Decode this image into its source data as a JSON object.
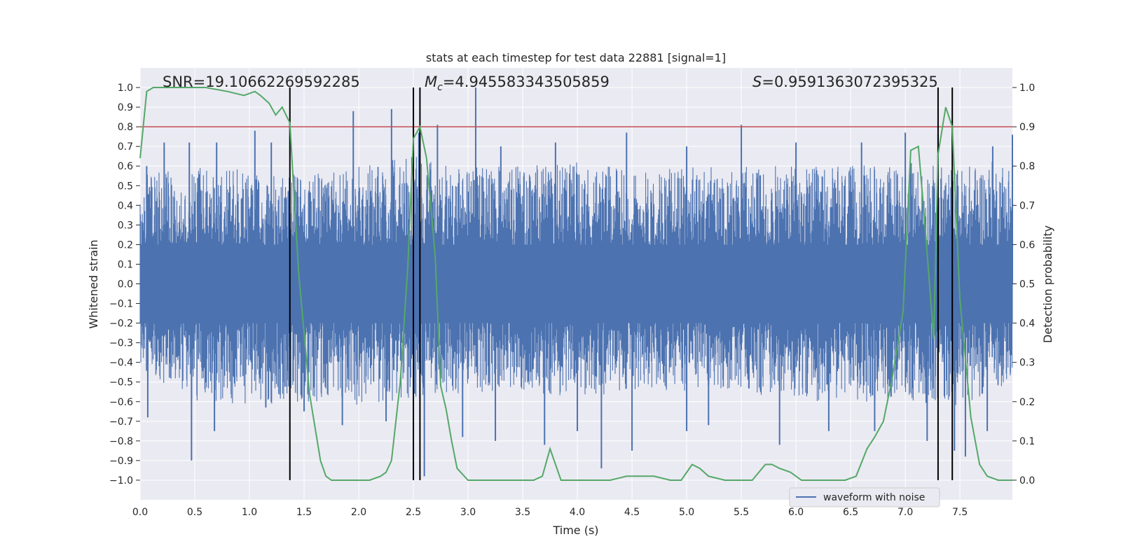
{
  "chart_data": {
    "type": "line",
    "title": "stats at each timestep for test data 22881 [signal=1]",
    "xlabel": "Time (s)",
    "ylabel_left": "Whitened strain",
    "ylabel_right": "Detection probability",
    "xlim": [
      0.0,
      7.98
    ],
    "ylim_left": [
      -1.1,
      1.1
    ],
    "ylim_right": [
      -0.05,
      1.05
    ],
    "grid": true,
    "background": "#eaeaf2",
    "x_ticks": [
      "0.0",
      "0.5",
      "1.0",
      "1.5",
      "2.0",
      "2.5",
      "3.0",
      "3.5",
      "4.0",
      "4.5",
      "5.0",
      "5.5",
      "6.0",
      "6.5",
      "7.0",
      "7.5"
    ],
    "y_ticks_left": [
      "1.0",
      "0.9",
      "0.8",
      "0.7",
      "0.6",
      "0.5",
      "0.4",
      "0.3",
      "0.2",
      "0.1",
      "0.0",
      "−0.1",
      "−0.2",
      "−0.3",
      "−0.4",
      "−0.5",
      "−0.6",
      "−0.7",
      "−0.8",
      "−0.9",
      "−1.0"
    ],
    "y_ticks_right": [
      "1.0",
      "0.9",
      "0.8",
      "0.7",
      "0.6",
      "0.5",
      "0.4",
      "0.3",
      "0.2",
      "0.1",
      "0.0"
    ],
    "annotations": {
      "snr": "SNR=19.10662269592285",
      "mc_symbol": "M",
      "mc_sub": "c",
      "mc_value": "=4.945583343505859",
      "s_symbol": "S",
      "s_value": "=0.9591363072395325"
    },
    "threshold": {
      "value": 0.8,
      "color": "#c44e52"
    },
    "vertical_lines": [
      1.37,
      2.5,
      2.56,
      7.3,
      7.43
    ],
    "vertical_line_range": [
      -1.0,
      1.0
    ],
    "series": [
      {
        "name": "waveform with noise",
        "color": "#4c72b0",
        "axis": "left",
        "envelope": {
          "x": [
            0.0,
            0.5,
            1.0,
            1.5,
            2.0,
            2.5,
            3.0,
            3.5,
            4.0,
            4.5,
            5.0,
            5.5,
            6.0,
            6.5,
            7.0,
            7.5,
            7.98
          ],
          "upper": [
            0.55,
            0.6,
            0.58,
            0.55,
            0.6,
            0.65,
            0.6,
            0.6,
            0.62,
            0.58,
            0.6,
            0.6,
            0.6,
            0.6,
            0.62,
            0.6,
            0.65
          ],
          "lower": [
            -0.45,
            -0.6,
            -0.62,
            -0.6,
            -0.62,
            -0.6,
            -0.55,
            -0.55,
            -0.58,
            -0.55,
            -0.55,
            -0.55,
            -0.6,
            -0.6,
            -0.6,
            -0.62,
            -0.5
          ]
        },
        "spikes": [
          [
            0.06,
            0.6
          ],
          [
            0.22,
            0.72
          ],
          [
            0.45,
            0.72
          ],
          [
            0.7,
            0.72
          ],
          [
            1.05,
            0.78
          ],
          [
            1.2,
            0.72
          ],
          [
            1.95,
            0.88
          ],
          [
            2.3,
            0.89
          ],
          [
            2.55,
            0.77
          ],
          [
            2.72,
            0.81
          ],
          [
            3.07,
            1.0
          ],
          [
            3.3,
            0.7
          ],
          [
            3.8,
            0.72
          ],
          [
            4.45,
            0.77
          ],
          [
            5.0,
            0.7
          ],
          [
            5.5,
            0.81
          ],
          [
            6.0,
            0.72
          ],
          [
            6.6,
            0.72
          ],
          [
            7.0,
            0.77
          ],
          [
            7.3,
            0.76
          ],
          [
            7.8,
            0.7
          ],
          [
            7.98,
            0.76
          ],
          [
            0.07,
            -0.68
          ],
          [
            0.47,
            -0.9
          ],
          [
            0.68,
            -0.75
          ],
          [
            1.15,
            -0.63
          ],
          [
            1.5,
            -0.65
          ],
          [
            1.85,
            -0.72
          ],
          [
            2.25,
            -0.7
          ],
          [
            2.6,
            -0.98
          ],
          [
            2.95,
            -0.78
          ],
          [
            3.25,
            -0.8
          ],
          [
            3.7,
            -0.82
          ],
          [
            4.0,
            -0.75
          ],
          [
            4.22,
            -0.94
          ],
          [
            4.5,
            -0.85
          ],
          [
            5.0,
            -0.75
          ],
          [
            5.2,
            -0.72
          ],
          [
            5.85,
            -0.82
          ],
          [
            6.3,
            -0.75
          ],
          [
            6.72,
            -0.75
          ],
          [
            7.2,
            -0.8
          ],
          [
            7.45,
            -0.85
          ],
          [
            7.55,
            -0.88
          ],
          [
            7.75,
            -0.75
          ]
        ]
      },
      {
        "name": "detection probability",
        "color": "#55a868",
        "axis": "right",
        "x": [
          0.0,
          0.06,
          0.12,
          0.3,
          0.6,
          0.8,
          0.95,
          1.05,
          1.1,
          1.18,
          1.24,
          1.3,
          1.37,
          1.45,
          1.55,
          1.65,
          1.7,
          1.75,
          1.9,
          2.0,
          2.1,
          2.2,
          2.25,
          2.3,
          2.38,
          2.45,
          2.5,
          2.56,
          2.62,
          2.7,
          2.75,
          2.8,
          2.85,
          2.9,
          3.0,
          3.1,
          3.3,
          3.5,
          3.6,
          3.68,
          3.75,
          3.85,
          3.95,
          4.1,
          4.3,
          4.45,
          4.6,
          4.7,
          4.85,
          4.95,
          5.05,
          5.12,
          5.2,
          5.35,
          5.5,
          5.6,
          5.72,
          5.78,
          5.85,
          5.95,
          6.05,
          6.15,
          6.3,
          6.45,
          6.55,
          6.65,
          6.72,
          6.8,
          6.88,
          6.98,
          7.05,
          7.12,
          7.18,
          7.26,
          7.3,
          7.37,
          7.43,
          7.5,
          7.6,
          7.68,
          7.75,
          7.85,
          7.98
        ],
        "y": [
          0.82,
          0.99,
          1.0,
          1.0,
          1.0,
          0.99,
          0.98,
          0.99,
          0.98,
          0.96,
          0.93,
          0.95,
          0.91,
          0.53,
          0.22,
          0.05,
          0.01,
          0.0,
          0.0,
          0.0,
          0.0,
          0.01,
          0.02,
          0.05,
          0.25,
          0.55,
          0.87,
          0.9,
          0.82,
          0.57,
          0.24,
          0.18,
          0.1,
          0.03,
          0.0,
          0.0,
          0.0,
          0.0,
          0.0,
          0.01,
          0.08,
          0.0,
          0.0,
          0.0,
          0.0,
          0.01,
          0.01,
          0.01,
          0.0,
          0.0,
          0.04,
          0.03,
          0.01,
          0.0,
          0.0,
          0.0,
          0.04,
          0.04,
          0.03,
          0.02,
          0.0,
          0.0,
          0.0,
          0.0,
          0.01,
          0.08,
          0.11,
          0.15,
          0.26,
          0.43,
          0.84,
          0.85,
          0.65,
          0.36,
          0.83,
          0.95,
          0.9,
          0.46,
          0.16,
          0.04,
          0.01,
          0.0,
          0.0
        ]
      }
    ],
    "legend": {
      "label": "waveform with noise",
      "placement": "lower-right"
    }
  }
}
